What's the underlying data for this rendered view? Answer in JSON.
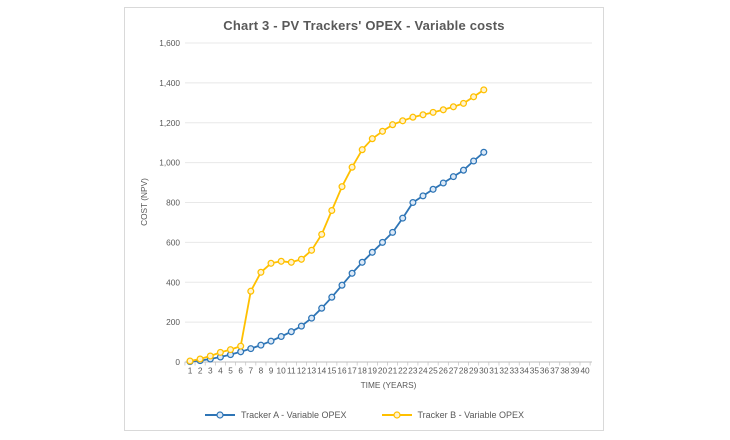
{
  "chart_data": {
    "type": "line",
    "title": "Chart 3 - PV Trackers' OPEX - Variable costs",
    "xlabel": "TIME (YEARS)",
    "ylabel": "COST (NPV)",
    "grid": true,
    "legend_position": "bottom",
    "x_axis_range": [
      1,
      40
    ],
    "ylim": [
      0,
      1600
    ],
    "y_tick_step": 200,
    "y_tick_labels": [
      "0",
      "200",
      "400",
      "600",
      "800",
      "1,000",
      "1,200",
      "1,400",
      "1,600"
    ],
    "x_tick_labels": [
      "1",
      "2",
      "3",
      "4",
      "5",
      "6",
      "7",
      "8",
      "9",
      "10",
      "11",
      "12",
      "13",
      "14",
      "15",
      "16",
      "17",
      "18",
      "19",
      "20",
      "21",
      "22",
      "23",
      "24",
      "25",
      "26",
      "27",
      "28",
      "29",
      "30",
      "31",
      "32",
      "33",
      "34",
      "35",
      "36",
      "37",
      "38",
      "39",
      "40"
    ],
    "x": [
      1,
      2,
      3,
      4,
      5,
      6,
      7,
      8,
      9,
      10,
      11,
      12,
      13,
      14,
      15,
      16,
      17,
      18,
      19,
      20,
      21,
      22,
      23,
      24,
      25,
      26,
      27,
      28,
      29,
      30
    ],
    "series": [
      {
        "name": "Tracker A - Variable OPEX",
        "color": "#2E75B6",
        "marker_fill": "#DCE9F7",
        "values": [
          2,
          7,
          15,
          25,
          37,
          51,
          67,
          85,
          105,
          128,
          152,
          180,
          220,
          270,
          325,
          385,
          445,
          500,
          550,
          600,
          650,
          722,
          800,
          833,
          866,
          898,
          930,
          962,
          1008,
          1052
        ]
      },
      {
        "name": "Tracker B - Variable OPEX",
        "color": "#FFC000",
        "marker_fill": "#FFF3CF",
        "values": [
          5,
          15,
          30,
          48,
          62,
          80,
          355,
          450,
          495,
          505,
          500,
          515,
          560,
          640,
          760,
          880,
          977,
          1065,
          1120,
          1157,
          1190,
          1210,
          1228,
          1240,
          1252,
          1265,
          1280,
          1297,
          1330,
          1365
        ]
      }
    ],
    "colors": {
      "title_text": "#595959",
      "axis_text": "#595959",
      "gridline": "#e8e8e8",
      "axis_line": "#bfbfbf",
      "card_border": "#d9d9d9"
    }
  }
}
